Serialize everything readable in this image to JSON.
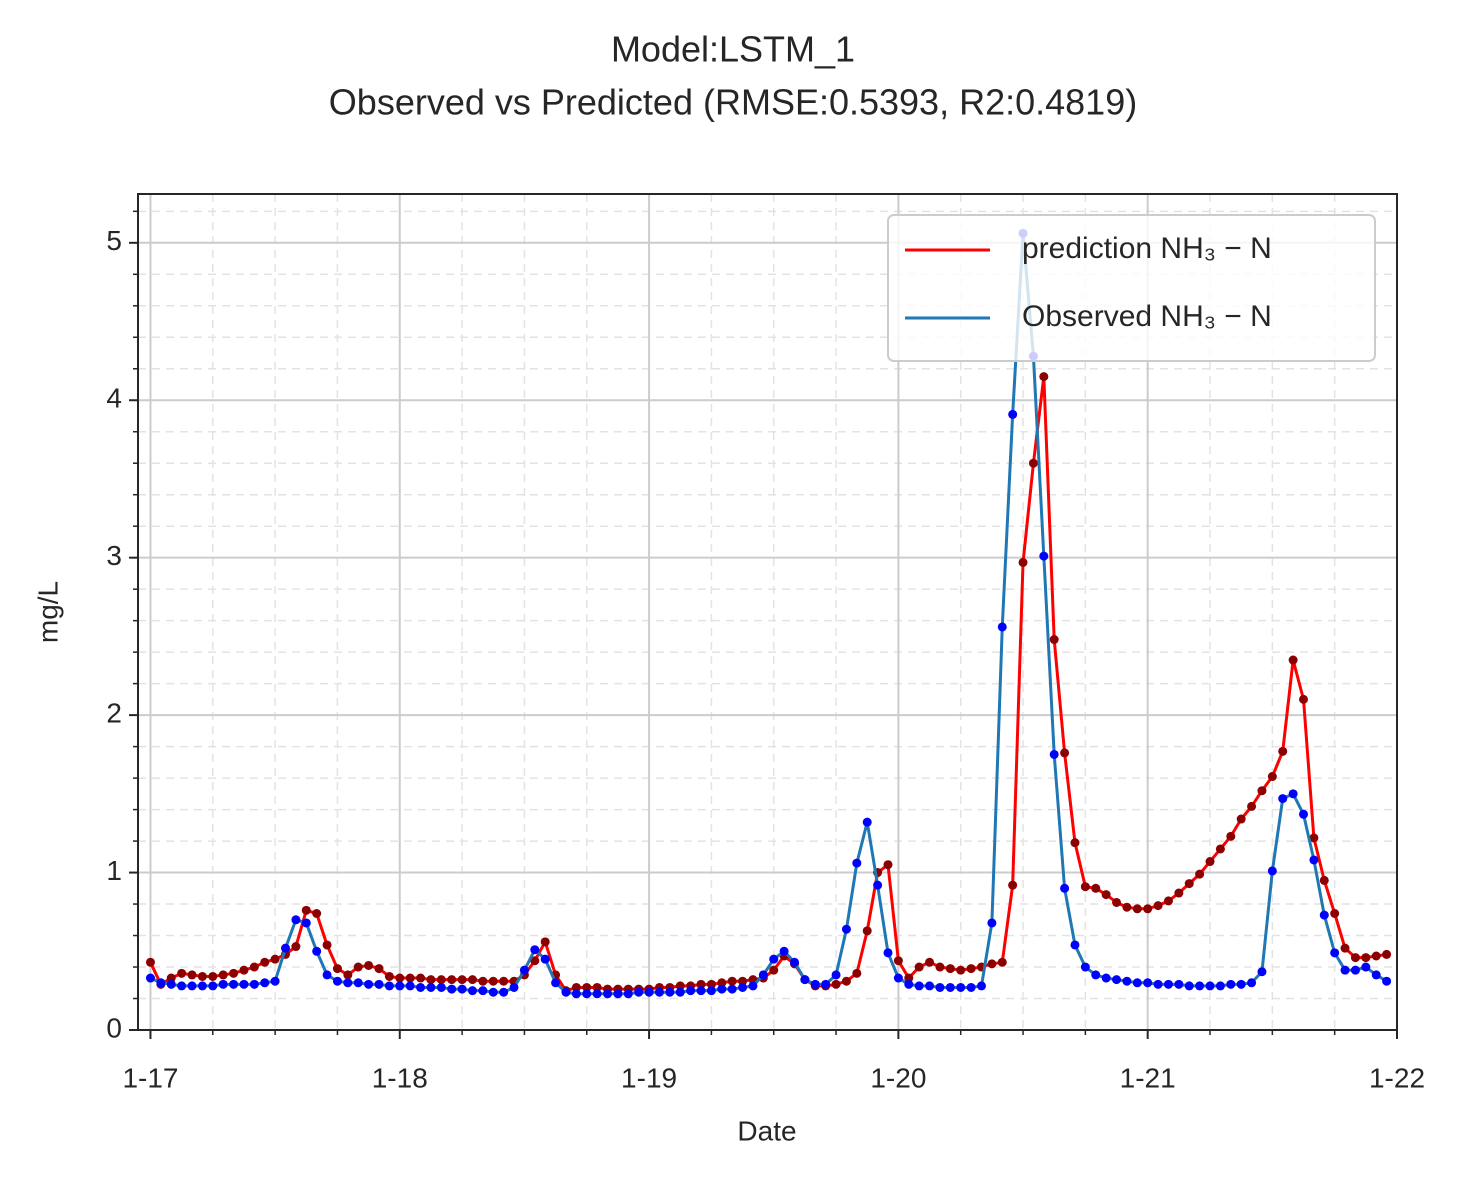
{
  "chart_data": {
    "type": "line",
    "title": "Model:LSTM_1",
    "subtitle": "Observed vs Predicted (RMSE:0.5393, R2:0.4819)",
    "xlabel": "Date",
    "ylabel": "mg/L",
    "x": [
      0,
      1,
      2,
      3,
      4,
      5,
      6,
      7,
      8,
      9,
      10,
      11,
      12,
      13,
      14,
      15,
      16,
      17,
      18,
      19,
      20,
      21,
      22,
      23,
      24,
      25,
      26,
      27,
      28,
      29,
      30,
      31,
      32,
      33,
      34,
      35,
      36,
      37,
      38,
      39,
      40,
      41,
      42,
      43,
      44,
      45,
      46,
      47,
      48,
      49,
      50,
      51,
      52,
      53,
      54,
      55,
      56,
      57,
      58,
      59,
      60,
      61,
      62,
      63,
      64,
      65,
      66,
      67,
      68,
      69,
      70,
      71,
      72,
      73,
      74,
      75,
      76,
      77,
      78,
      79,
      80,
      81,
      82,
      83,
      84,
      85,
      86,
      87,
      88,
      89,
      90,
      91,
      92,
      93,
      94,
      95,
      96,
      97,
      98,
      99,
      100,
      101,
      102,
      103,
      104,
      105,
      106,
      107,
      108,
      109,
      110,
      111,
      112,
      113,
      114,
      115,
      116,
      117,
      118,
      119
    ],
    "series": [
      {
        "name": "prediction NH₃ − N",
        "color": "#ff0000",
        "marker_color": "#8b0000",
        "values": [
          0.43,
          0.29,
          0.33,
          0.36,
          0.35,
          0.34,
          0.34,
          0.35,
          0.36,
          0.38,
          0.4,
          0.43,
          0.45,
          0.48,
          0.53,
          0.76,
          0.74,
          0.54,
          0.39,
          0.35,
          0.4,
          0.41,
          0.39,
          0.34,
          0.33,
          0.33,
          0.33,
          0.32,
          0.32,
          0.32,
          0.32,
          0.32,
          0.31,
          0.31,
          0.31,
          0.31,
          0.35,
          0.44,
          0.56,
          0.35,
          0.25,
          0.27,
          0.27,
          0.27,
          0.26,
          0.26,
          0.26,
          0.26,
          0.26,
          0.27,
          0.27,
          0.28,
          0.28,
          0.29,
          0.29,
          0.3,
          0.31,
          0.31,
          0.32,
          0.33,
          0.38,
          0.47,
          0.42,
          0.32,
          0.28,
          0.28,
          0.29,
          0.31,
          0.36,
          0.63,
          1.0,
          1.05,
          0.44,
          0.33,
          0.4,
          0.43,
          0.4,
          0.39,
          0.38,
          0.39,
          0.4,
          0.42,
          0.43,
          0.92,
          2.97,
          3.6,
          4.15,
          2.48,
          1.76,
          1.19,
          0.91,
          0.9,
          0.86,
          0.81,
          0.78,
          0.77,
          0.77,
          0.79,
          0.82,
          0.87,
          0.93,
          0.99,
          1.07,
          1.15,
          1.23,
          1.34,
          1.42,
          1.52,
          1.61,
          1.77,
          2.35,
          2.1,
          1.22,
          0.95,
          0.74,
          0.52,
          0.46,
          0.46,
          0.47,
          0.48
        ]
      },
      {
        "name": "Observed NH₃ − N",
        "color": "#1f77b4",
        "marker_color": "#0000ff",
        "values": [
          0.33,
          0.3,
          0.29,
          0.28,
          0.28,
          0.28,
          0.28,
          0.29,
          0.29,
          0.29,
          0.29,
          0.3,
          0.31,
          0.52,
          0.7,
          0.68,
          0.5,
          0.35,
          0.31,
          0.3,
          0.3,
          0.29,
          0.29,
          0.28,
          0.28,
          0.28,
          0.27,
          0.27,
          0.27,
          0.26,
          0.26,
          0.25,
          0.25,
          0.24,
          0.24,
          0.27,
          0.38,
          0.51,
          0.45,
          0.3,
          0.24,
          0.23,
          0.23,
          0.23,
          0.23,
          0.23,
          0.23,
          0.24,
          0.24,
          0.24,
          0.24,
          0.24,
          0.25,
          0.25,
          0.25,
          0.26,
          0.26,
          0.27,
          0.28,
          0.35,
          0.45,
          0.5,
          0.43,
          0.32,
          0.29,
          0.29,
          0.35,
          0.64,
          1.06,
          1.32,
          0.92,
          0.49,
          0.33,
          0.29,
          0.28,
          0.28,
          0.27,
          0.27,
          0.27,
          0.27,
          0.28,
          0.68,
          2.56,
          3.91,
          5.06,
          4.28,
          3.01,
          1.75,
          0.9,
          0.54,
          0.4,
          0.35,
          0.33,
          0.32,
          0.31,
          0.3,
          0.3,
          0.29,
          0.29,
          0.29,
          0.28,
          0.28,
          0.28,
          0.28,
          0.29,
          0.29,
          0.3,
          0.37,
          1.01,
          1.47,
          1.5,
          1.37,
          1.08,
          0.73,
          0.49,
          0.38,
          0.38,
          0.4,
          0.35,
          0.31
        ]
      }
    ],
    "xlim": [
      -1.2,
      120
    ],
    "xticks": [
      {
        "value": 0,
        "label": "1-17"
      },
      {
        "value": 24,
        "label": "1-18"
      },
      {
        "value": 48,
        "label": "1-19"
      },
      {
        "value": 72,
        "label": "1-20"
      },
      {
        "value": 96,
        "label": "1-21"
      },
      {
        "value": 120,
        "label": "1-22"
      }
    ],
    "xminorticks": [
      6,
      12,
      18,
      30,
      36,
      42,
      54,
      60,
      66,
      78,
      84,
      90,
      102,
      108,
      114
    ],
    "ylim": [
      0,
      5.31
    ],
    "yticks": [
      0,
      1,
      2,
      3,
      4,
      5
    ],
    "yminorticks": [
      0.2,
      0.4,
      0.6,
      0.8,
      1.2,
      1.4,
      1.6,
      1.8,
      2.2,
      2.4,
      2.6,
      2.8,
      3.2,
      3.4,
      3.6,
      3.8,
      4.2,
      4.4,
      4.6,
      4.8,
      5.2
    ],
    "grid": true,
    "minor_grid": true,
    "legend": "upper right"
  }
}
